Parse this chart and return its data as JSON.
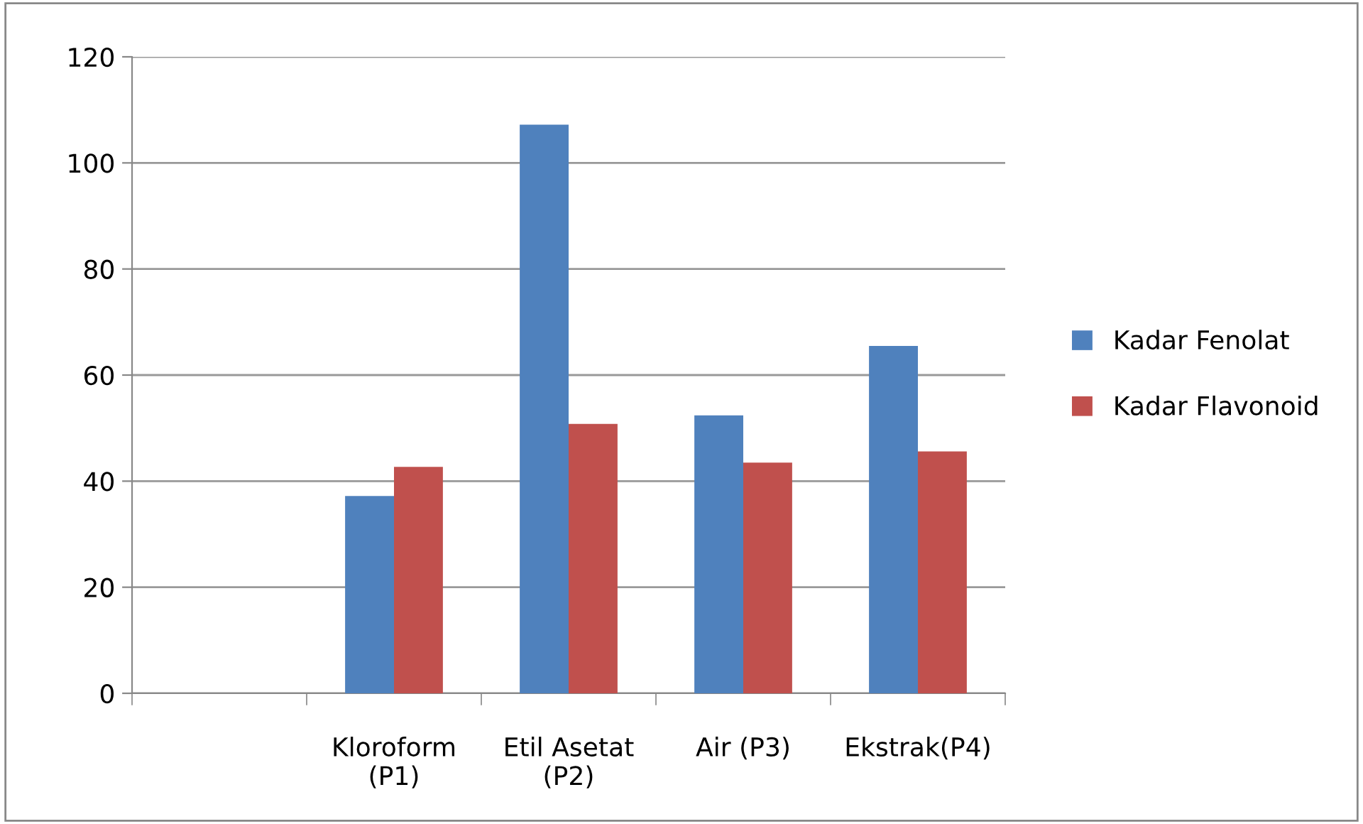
{
  "chart_data": {
    "type": "bar",
    "categories": [
      null,
      "Kloroform\n(P1)",
      "Etil Asetat\n(P2)",
      "Air (P3)",
      "Ekstrak(P4)"
    ],
    "series": [
      {
        "name": "Kadar Fenolat",
        "color": "#4f81bd",
        "values": [
          null,
          37.2,
          107.2,
          52.4,
          65.5
        ]
      },
      {
        "name": "Kadar Flavonoid",
        "color": "#c0504d",
        "values": [
          null,
          42.7,
          50.8,
          43.5,
          45.6
        ]
      }
    ],
    "ylim": [
      0,
      120
    ],
    "yticks": [
      0,
      20,
      40,
      60,
      80,
      100,
      120
    ],
    "grid": "y",
    "legend": "right"
  }
}
